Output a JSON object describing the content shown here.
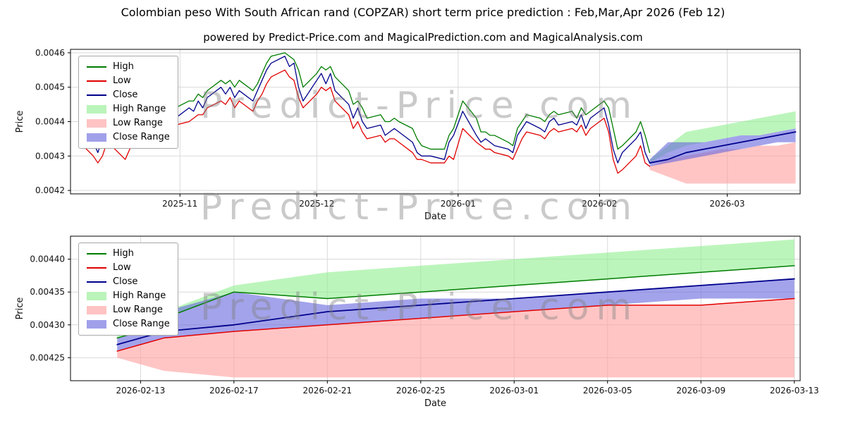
{
  "page": {
    "title": "Colombian peso With South African rand (COPZAR) short term price prediction : Feb,Mar,Apr 2026 (Feb 12)",
    "subtitle": "powered by Predict-Price.com and MagicalPrediction.com and MagicalAnalysis.com",
    "watermark": "Predict-Price.com"
  },
  "colors": {
    "high": "#007d00",
    "low": "#e10000",
    "close": "#00008b",
    "high_range": "#90ee90",
    "low_range": "#ff9e9e",
    "close_range": "#6666dd",
    "grid": "#d9d9d9",
    "frame": "#000000",
    "text": "#111111"
  },
  "legend": {
    "items": [
      {
        "label": "High",
        "kind": "line",
        "color": "#007d00"
      },
      {
        "label": "Low",
        "kind": "line",
        "color": "#e10000"
      },
      {
        "label": "Close",
        "kind": "line",
        "color": "#00008b"
      },
      {
        "label": "High Range",
        "kind": "patch",
        "color": "#90ee90"
      },
      {
        "label": "Low Range",
        "kind": "patch",
        "color": "#ff9e9e"
      },
      {
        "label": "Close Range",
        "kind": "patch",
        "color": "#6666dd"
      }
    ]
  },
  "chart_data": [
    {
      "type": "line",
      "name": "history-and-forecast",
      "title": "",
      "xlabel": "Date",
      "ylabel": "Price",
      "xlim": [
        "2025-10-08",
        "2026-03-17"
      ],
      "ylim": [
        0.00419,
        0.00461
      ],
      "grid": true,
      "legend_position": "upper-left",
      "yticks": {
        "values": [
          0.0042,
          0.0043,
          0.0044,
          0.0045,
          0.0046
        ],
        "labels": [
          "0.0042",
          "0.0043",
          "0.0044",
          "0.0045",
          "0.0046"
        ]
      },
      "xticks": {
        "values": [
          "2025-11-01",
          "2025-12-01",
          "2026-01-01",
          "2026-02-01",
          "2026-03-01"
        ],
        "labels": [
          "2025-11",
          "2025-12",
          "2026-01",
          "2026-02",
          "2026-03"
        ]
      },
      "history": {
        "dates": [
          "2025-10-10",
          "2025-10-13",
          "2025-10-14",
          "2025-10-15",
          "2025-10-16",
          "2025-10-17",
          "2025-10-20",
          "2025-10-21",
          "2025-10-22",
          "2025-10-23",
          "2025-10-24",
          "2025-10-27",
          "2025-10-28",
          "2025-10-29",
          "2025-10-30",
          "2025-10-31",
          "2025-11-03",
          "2025-11-04",
          "2025-11-05",
          "2025-11-06",
          "2025-11-07",
          "2025-11-10",
          "2025-11-11",
          "2025-11-12",
          "2025-11-13",
          "2025-11-14",
          "2025-11-17",
          "2025-11-18",
          "2025-11-19",
          "2025-11-20",
          "2025-11-21",
          "2025-11-24",
          "2025-11-25",
          "2025-11-26",
          "2025-11-27",
          "2025-11-28",
          "2025-12-01",
          "2025-12-02",
          "2025-12-03",
          "2025-12-04",
          "2025-12-05",
          "2025-12-08",
          "2025-12-09",
          "2025-12-10",
          "2025-12-11",
          "2025-12-12",
          "2025-12-15",
          "2025-12-16",
          "2025-12-17",
          "2025-12-18",
          "2025-12-19",
          "2025-12-22",
          "2025-12-23",
          "2025-12-24",
          "2025-12-26",
          "2025-12-29",
          "2025-12-30",
          "2025-12-31",
          "2026-01-02",
          "2026-01-05",
          "2026-01-06",
          "2026-01-07",
          "2026-01-08",
          "2026-01-09",
          "2026-01-12",
          "2026-01-13",
          "2026-01-14",
          "2026-01-15",
          "2026-01-16",
          "2026-01-19",
          "2026-01-20",
          "2026-01-21",
          "2026-01-22",
          "2026-01-23",
          "2026-01-26",
          "2026-01-27",
          "2026-01-28",
          "2026-01-29",
          "2026-01-30",
          "2026-02-02",
          "2026-02-03",
          "2026-02-04",
          "2026-02-05",
          "2026-02-06",
          "2026-02-09",
          "2026-02-10",
          "2026-02-11",
          "2026-02-12"
        ],
        "close": [
          0.00437,
          0.00434,
          0.00431,
          0.00435,
          0.00438,
          0.00436,
          0.00433,
          0.00436,
          0.0044,
          0.00438,
          0.00441,
          0.00439,
          0.00441,
          0.0044,
          0.00442,
          0.00441,
          0.00444,
          0.00443,
          0.00446,
          0.00444,
          0.00447,
          0.0045,
          0.00448,
          0.0045,
          0.00447,
          0.00449,
          0.00446,
          0.00449,
          0.00452,
          0.00455,
          0.00457,
          0.00459,
          0.00456,
          0.00457,
          0.0045,
          0.00446,
          0.00452,
          0.00454,
          0.00451,
          0.00454,
          0.00449,
          0.00445,
          0.00441,
          0.00444,
          0.0044,
          0.00438,
          0.00439,
          0.00436,
          0.00437,
          0.00438,
          0.00437,
          0.00434,
          0.00431,
          0.0043,
          0.0043,
          0.00429,
          0.00434,
          0.00436,
          0.00443,
          0.00436,
          0.00434,
          0.00435,
          0.00434,
          0.00433,
          0.00432,
          0.00431,
          0.00436,
          0.00438,
          0.0044,
          0.00438,
          0.00437,
          0.0044,
          0.00441,
          0.00439,
          0.0044,
          0.00439,
          0.00442,
          0.00438,
          0.00441,
          0.00444,
          0.00439,
          0.00432,
          0.00428,
          0.00431,
          0.00435,
          0.00437,
          0.00431,
          0.00428
        ],
        "high": [
          0.0044,
          0.00437,
          0.00434,
          0.00437,
          0.00441,
          0.0044,
          0.00437,
          0.00438,
          0.00442,
          0.00441,
          0.00443,
          0.00442,
          0.00444,
          0.00443,
          0.00444,
          0.00444,
          0.00446,
          0.00446,
          0.00448,
          0.00447,
          0.00449,
          0.00452,
          0.00451,
          0.00452,
          0.0045,
          0.00452,
          0.00449,
          0.00451,
          0.00454,
          0.00457,
          0.00459,
          0.0046,
          0.00459,
          0.00458,
          0.00455,
          0.0045,
          0.00454,
          0.00456,
          0.00455,
          0.00456,
          0.00453,
          0.00449,
          0.00445,
          0.00446,
          0.00444,
          0.00441,
          0.00442,
          0.0044,
          0.0044,
          0.00441,
          0.0044,
          0.00438,
          0.00435,
          0.00433,
          0.00432,
          0.00432,
          0.00436,
          0.00438,
          0.00446,
          0.00441,
          0.00437,
          0.00437,
          0.00436,
          0.00436,
          0.00434,
          0.00433,
          0.00438,
          0.0044,
          0.00442,
          0.00441,
          0.0044,
          0.00442,
          0.00443,
          0.00442,
          0.00443,
          0.00441,
          0.00444,
          0.00442,
          0.00443,
          0.00446,
          0.00444,
          0.00438,
          0.00432,
          0.00433,
          0.00437,
          0.0044,
          0.00436,
          0.00431
        ],
        "low": [
          0.00434,
          0.0043,
          0.00428,
          0.0043,
          0.00434,
          0.00433,
          0.00429,
          0.00432,
          0.00436,
          0.00435,
          0.00437,
          0.00436,
          0.00438,
          0.00437,
          0.00438,
          0.00439,
          0.0044,
          0.00441,
          0.00442,
          0.00442,
          0.00444,
          0.00446,
          0.00445,
          0.00447,
          0.00444,
          0.00446,
          0.00443,
          0.00446,
          0.00448,
          0.00451,
          0.00453,
          0.00455,
          0.00453,
          0.00452,
          0.00447,
          0.00444,
          0.00448,
          0.0045,
          0.00449,
          0.0045,
          0.00446,
          0.00442,
          0.00438,
          0.0044,
          0.00437,
          0.00435,
          0.00436,
          0.00434,
          0.00435,
          0.00435,
          0.00434,
          0.00431,
          0.00429,
          0.00429,
          0.00428,
          0.00428,
          0.0043,
          0.00429,
          0.00438,
          0.00434,
          0.00433,
          0.00432,
          0.00432,
          0.00431,
          0.0043,
          0.00429,
          0.00432,
          0.00435,
          0.00437,
          0.00436,
          0.00435,
          0.00437,
          0.00438,
          0.00437,
          0.00438,
          0.00437,
          0.00439,
          0.00436,
          0.00438,
          0.00441,
          0.00437,
          0.00429,
          0.00425,
          0.00426,
          0.0043,
          0.00433,
          0.00428,
          0.00427
        ]
      },
      "forecast": {
        "dates": [
          "2026-02-12",
          "2026-02-16",
          "2026-02-20",
          "2026-02-24",
          "2026-02-28",
          "2026-03-04",
          "2026-03-08",
          "2026-03-12",
          "2026-03-16"
        ],
        "close": [
          0.00428,
          0.00429,
          0.00431,
          0.00432,
          0.00433,
          0.00434,
          0.00435,
          0.00436,
          0.00437
        ],
        "high_range": {
          "upper": [
            0.00429,
            0.00433,
            0.00437,
            0.00438,
            0.00439,
            0.0044,
            0.00441,
            0.00442,
            0.00443
          ],
          "lower": [
            0.00428,
            0.00431,
            0.00433,
            0.00434,
            0.00435,
            0.00436,
            0.00436,
            0.00437,
            0.00438
          ]
        },
        "low_range": {
          "upper": [
            0.00427,
            0.00429,
            0.0043,
            0.00431,
            0.00432,
            0.00432,
            0.00433,
            0.00433,
            0.00434
          ],
          "lower": [
            0.00426,
            0.00424,
            0.00422,
            0.00422,
            0.00422,
            0.00422,
            0.00422,
            0.00422,
            0.00422
          ]
        },
        "close_range": {
          "upper": [
            0.00429,
            0.00434,
            0.00434,
            0.00434,
            0.00435,
            0.00436,
            0.00436,
            0.00437,
            0.00438
          ],
          "lower": [
            0.00427,
            0.00428,
            0.00429,
            0.0043,
            0.00431,
            0.00432,
            0.00433,
            0.00434,
            0.00434
          ]
        }
      }
    },
    {
      "type": "line",
      "name": "forecast-detail",
      "title": "",
      "xlabel": "Date",
      "ylabel": "Price",
      "xlim": [
        "2026-02-10",
        "2026-03-13T06:00:00"
      ],
      "ylim": [
        0.004215,
        0.004435
      ],
      "grid": true,
      "legend_position": "upper-left",
      "yticks": {
        "values": [
          0.00425,
          0.0043,
          0.00435,
          0.0044
        ],
        "labels": [
          "0.00425",
          "0.00430",
          "0.00435",
          "0.00440"
        ]
      },
      "xticks": {
        "values": [
          "2026-02-13",
          "2026-02-17",
          "2026-02-21",
          "2026-02-25",
          "2026-03-01",
          "2026-03-05",
          "2026-03-09",
          "2026-03-13"
        ],
        "labels": [
          "2026-02-13",
          "2026-02-17",
          "2026-02-21",
          "2026-02-25",
          "2026-03-01",
          "2026-03-05",
          "2026-03-09",
          "2026-03-13"
        ]
      },
      "series": {
        "dates": [
          "2026-02-12",
          "2026-02-13",
          "2026-02-14",
          "2026-02-17",
          "2026-02-21",
          "2026-02-25",
          "2026-03-01",
          "2026-03-05",
          "2026-03-09",
          "2026-03-13"
        ],
        "high": [
          0.00428,
          0.00429,
          0.00431,
          0.00435,
          0.00434,
          0.00435,
          0.00436,
          0.00437,
          0.00438,
          0.00439
        ],
        "low": [
          0.00426,
          0.00427,
          0.00428,
          0.00429,
          0.0043,
          0.00431,
          0.00432,
          0.00433,
          0.00433,
          0.00434
        ],
        "close": [
          0.00427,
          0.00428,
          0.00429,
          0.0043,
          0.00432,
          0.00433,
          0.00434,
          0.00435,
          0.00436,
          0.00437
        ]
      },
      "bounds": {
        "high_upper": [
          0.00429,
          0.0043,
          0.00432,
          0.00436,
          0.00438,
          0.00439,
          0.0044,
          0.00441,
          0.00442,
          0.00443
        ],
        "low_lower": [
          0.00425,
          0.00424,
          0.00423,
          0.00422,
          0.00422,
          0.00422,
          0.00422,
          0.00422,
          0.00422,
          0.00422
        ],
        "close_upper": [
          0.00428,
          0.00429,
          0.00432,
          0.00435,
          0.00433,
          0.00434,
          0.00434,
          0.00435,
          0.00436,
          0.00437
        ],
        "close_lower": [
          0.00426,
          0.00427,
          0.00428,
          0.00429,
          0.0043,
          0.00431,
          0.00432,
          0.00433,
          0.00434,
          0.00434
        ]
      }
    }
  ]
}
